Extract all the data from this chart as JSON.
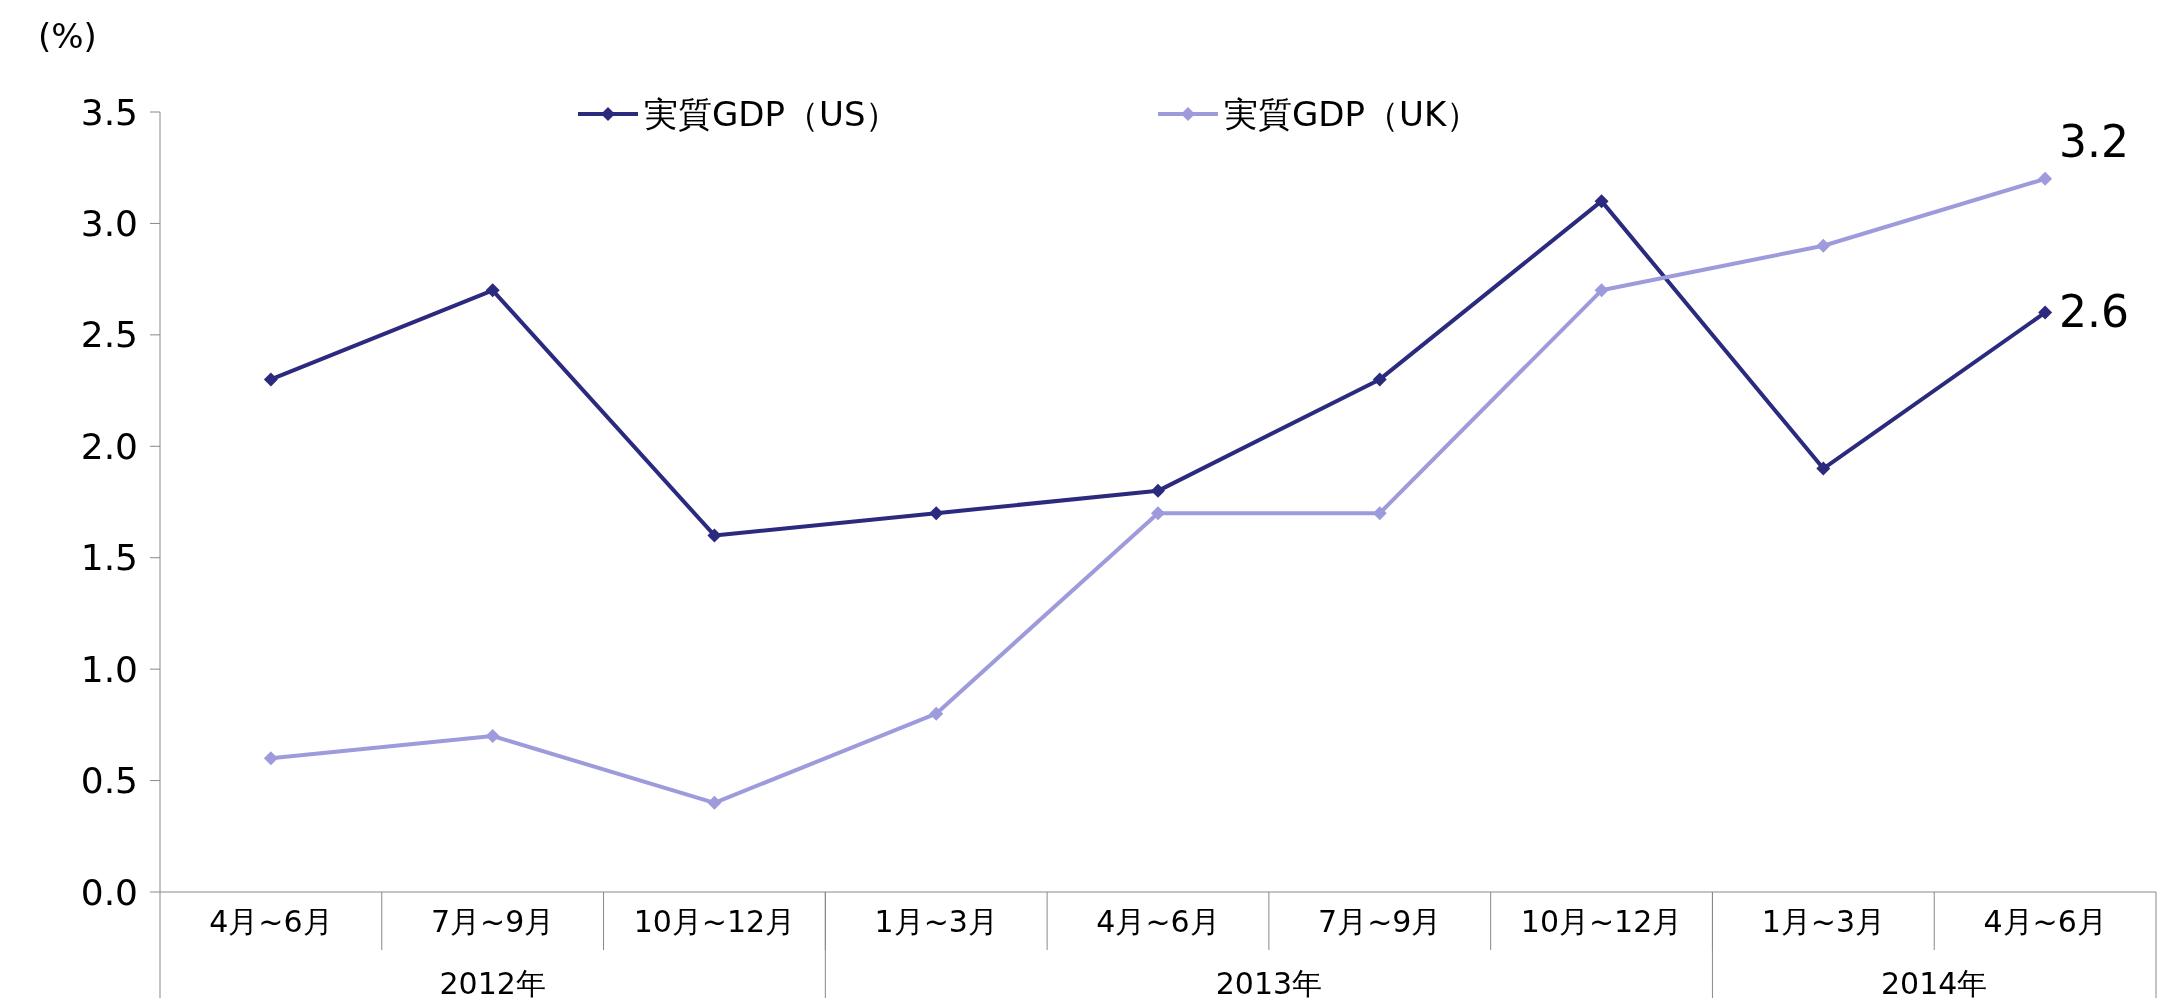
{
  "chart_data": {
    "type": "line",
    "ylabel": "(%)",
    "categories": [
      "4月~6月",
      "7月~9月",
      "10月~12月",
      "1月~3月",
      "4月~6月",
      "7月~9月",
      "10月~12月",
      "1月~3月",
      "4月~6月"
    ],
    "series": [
      {
        "name": "実質GDP（US）",
        "color": "#2b2a7e",
        "values": [
          2.3,
          2.7,
          1.6,
          1.7,
          1.8,
          2.3,
          3.1,
          1.9,
          2.6
        ],
        "value_labels": [
          null,
          null,
          null,
          null,
          null,
          null,
          null,
          null,
          "2.6"
        ]
      },
      {
        "name": "実質GDP（UK）",
        "color": "#9d9bdc",
        "values": [
          0.6,
          0.7,
          0.4,
          0.8,
          1.7,
          1.7,
          2.7,
          2.9,
          3.2
        ],
        "value_labels": [
          null,
          null,
          null,
          null,
          null,
          null,
          null,
          null,
          "3.2"
        ]
      }
    ],
    "ylim": [
      0,
      3.5
    ],
    "yticks": [
      {
        "value": 0,
        "label": "0.0"
      },
      {
        "value": 0.5,
        "label": "0.5"
      },
      {
        "value": 1,
        "label": "1.0"
      },
      {
        "value": 1.5,
        "label": "1.5"
      },
      {
        "value": 2,
        "label": "2.0"
      },
      {
        "value": 2.5,
        "label": "2.5"
      },
      {
        "value": 3,
        "label": "3.0"
      },
      {
        "value": 3.5,
        "label": "3.5"
      }
    ],
    "annotations": [
      "2012年",
      "2013年",
      "2014年"
    ],
    "legend": "top",
    "marker": "diamond",
    "line_style": "solid",
    "grid": false
  }
}
